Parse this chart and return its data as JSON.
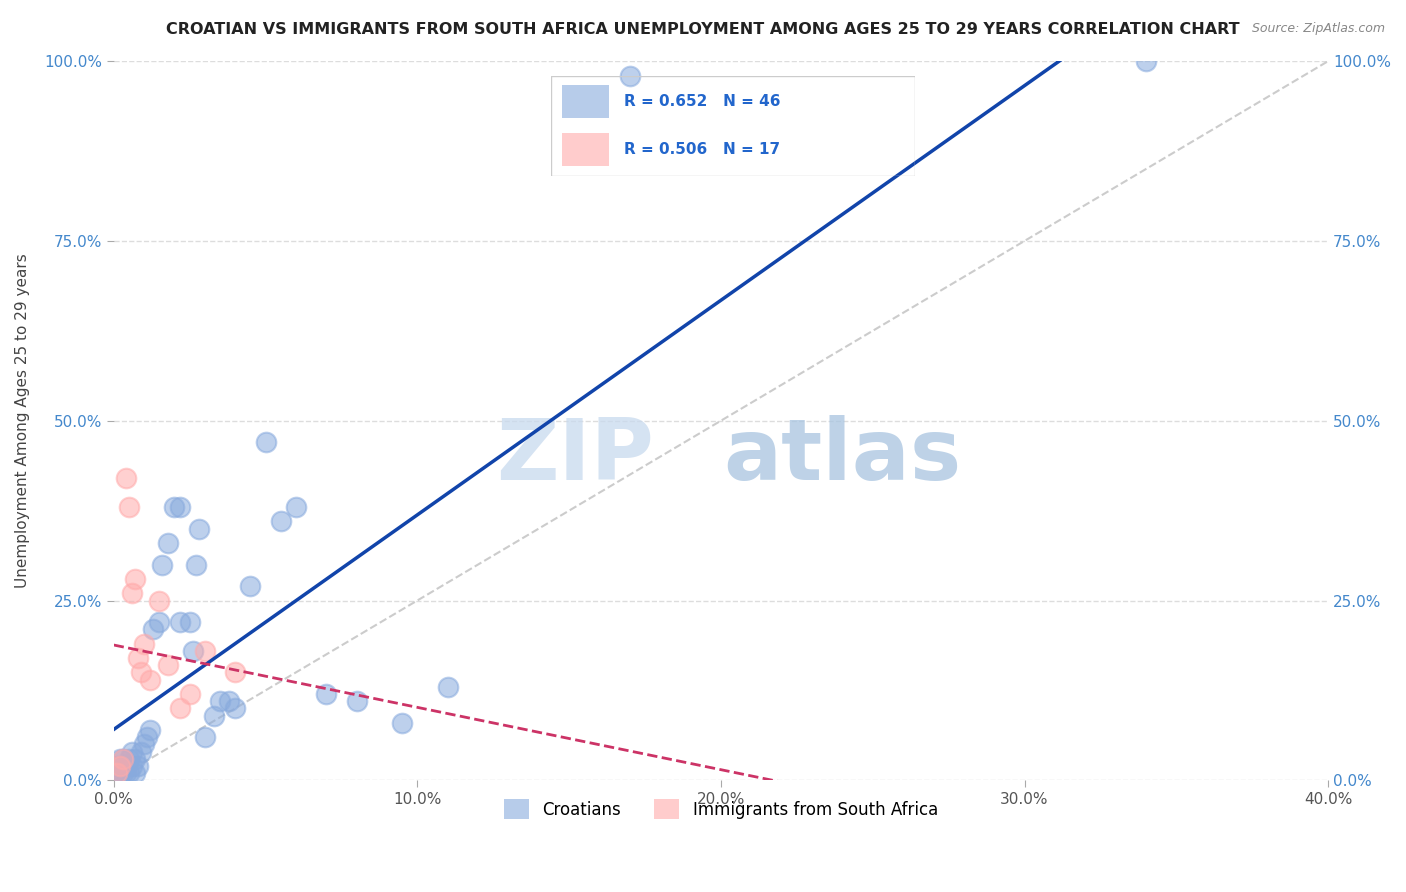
{
  "title": "CROATIAN VS IMMIGRANTS FROM SOUTH AFRICA UNEMPLOYMENT AMONG AGES 25 TO 29 YEARS CORRELATION CHART",
  "source": "Source: ZipAtlas.com",
  "ylabel": "Unemployment Among Ages 25 to 29 years",
  "xlim": [
    0.0,
    0.4
  ],
  "ylim": [
    0.0,
    1.0
  ],
  "xticks": [
    0.0,
    0.1,
    0.2,
    0.3,
    0.4
  ],
  "yticks": [
    0.0,
    0.25,
    0.5,
    0.75,
    1.0
  ],
  "xtick_labels": [
    "0.0%",
    "10.0%",
    "20.0%",
    "30.0%",
    "40.0%"
  ],
  "ytick_labels": [
    "0.0%",
    "25.0%",
    "50.0%",
    "75.0%",
    "100.0%"
  ],
  "blue_color": "#88AADD",
  "pink_color": "#FFAAAA",
  "blue_line_color": "#1144AA",
  "pink_line_color": "#CC3366",
  "ref_line_color": "#CCCCCC",
  "grid_color": "#DDDDDD",
  "axis_color": "#4488CC",
  "r_blue": 0.652,
  "n_blue": 46,
  "r_pink": 0.506,
  "n_pink": 17,
  "legend_label_blue": "Croatians",
  "legend_label_pink": "Immigrants from South Africa",
  "watermark_zip": "ZIP",
  "watermark_atlas": "atlas",
  "blue_scatter_x": [
    0.001,
    0.001,
    0.002,
    0.002,
    0.003,
    0.003,
    0.003,
    0.004,
    0.004,
    0.005,
    0.005,
    0.006,
    0.006,
    0.007,
    0.007,
    0.008,
    0.009,
    0.01,
    0.011,
    0.012,
    0.013,
    0.015,
    0.016,
    0.018,
    0.02,
    0.022,
    0.022,
    0.025,
    0.026,
    0.027,
    0.028,
    0.03,
    0.033,
    0.035,
    0.038,
    0.04,
    0.045,
    0.05,
    0.055,
    0.06,
    0.07,
    0.08,
    0.095,
    0.11,
    0.17,
    0.34
  ],
  "blue_scatter_y": [
    0.01,
    0.02,
    0.01,
    0.03,
    0.01,
    0.02,
    0.03,
    0.01,
    0.02,
    0.01,
    0.03,
    0.02,
    0.04,
    0.01,
    0.03,
    0.02,
    0.04,
    0.05,
    0.06,
    0.07,
    0.21,
    0.22,
    0.3,
    0.33,
    0.38,
    0.22,
    0.38,
    0.22,
    0.18,
    0.3,
    0.35,
    0.06,
    0.09,
    0.11,
    0.11,
    0.1,
    0.27,
    0.47,
    0.36,
    0.38,
    0.12,
    0.11,
    0.08,
    0.13,
    0.98,
    1.0
  ],
  "pink_scatter_x": [
    0.001,
    0.002,
    0.003,
    0.004,
    0.005,
    0.006,
    0.007,
    0.008,
    0.009,
    0.01,
    0.012,
    0.015,
    0.018,
    0.022,
    0.025,
    0.03,
    0.04
  ],
  "pink_scatter_y": [
    0.01,
    0.02,
    0.03,
    0.42,
    0.38,
    0.26,
    0.28,
    0.17,
    0.15,
    0.19,
    0.14,
    0.25,
    0.16,
    0.1,
    0.12,
    0.18,
    0.15
  ]
}
